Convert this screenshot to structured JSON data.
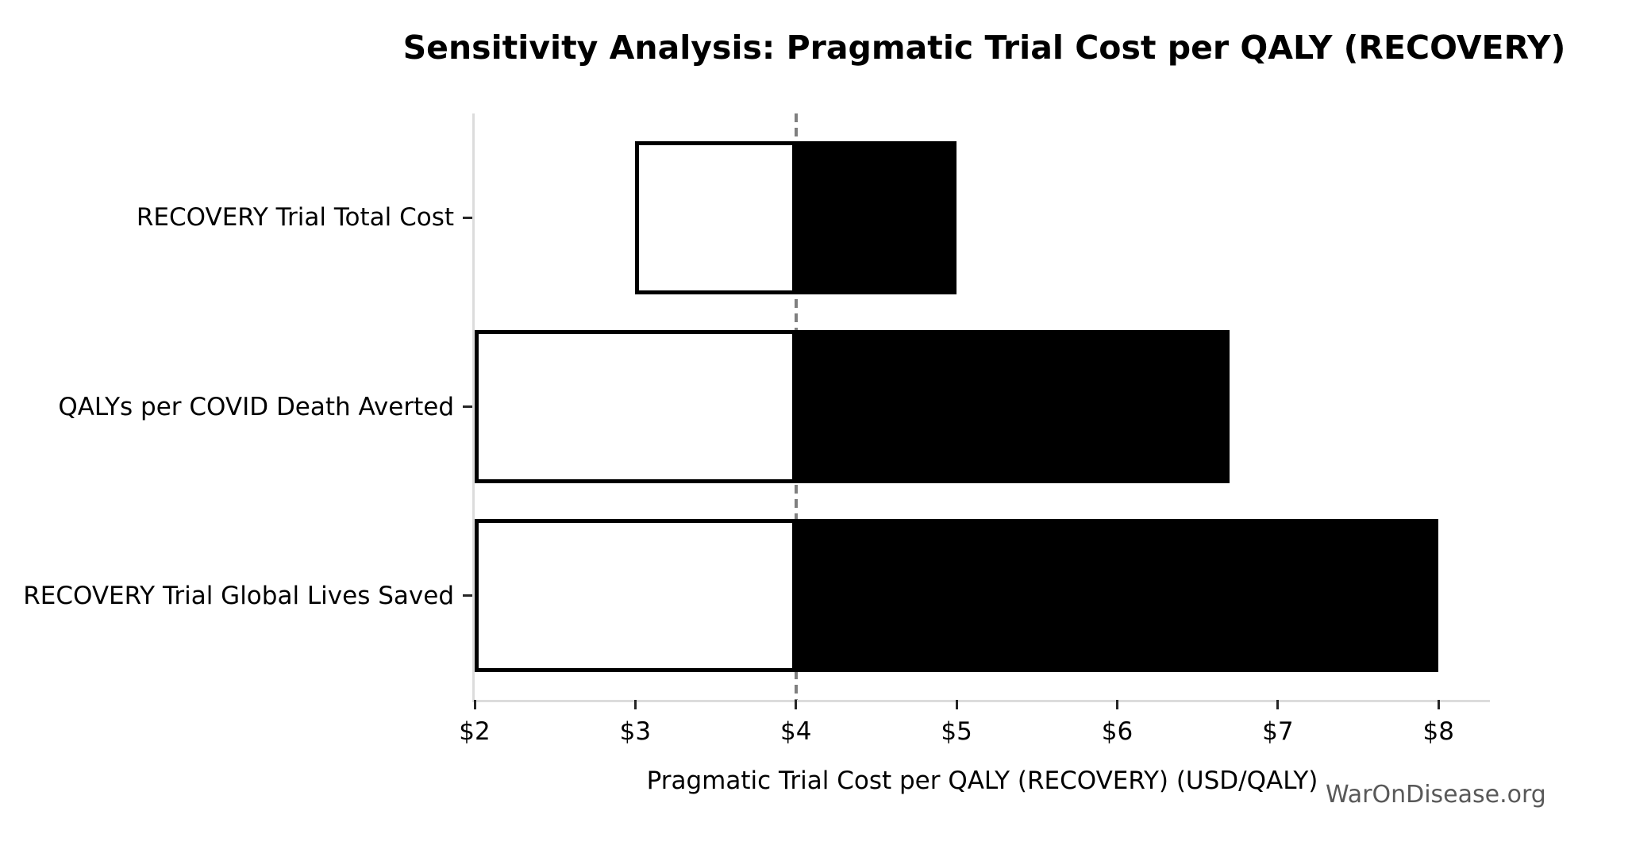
{
  "chart_data": {
    "type": "bar",
    "variant": "tornado-sensitivity",
    "orientation": "horizontal",
    "title": "Sensitivity Analysis: Pragmatic Trial Cost per QALY (RECOVERY)",
    "xlabel": "Pragmatic Trial Cost per QALY (RECOVERY) (USD/QALY)",
    "ylabel": "",
    "baseline_value": 4,
    "categories": [
      "RECOVERY Trial Total Cost",
      "QALYs per COVID Death Averted",
      "RECOVERY Trial Global Lives Saved"
    ],
    "bars": [
      {
        "label": "RECOVERY Trial Total Cost",
        "low": 3.0,
        "high": 5.0
      },
      {
        "label": "QALYs per COVID Death Averted",
        "low": 2.0,
        "high": 6.7
      },
      {
        "label": "RECOVERY Trial Global Lives Saved",
        "low": 2.0,
        "high": 8.0
      }
    ],
    "x_ticks": [
      {
        "value": 2,
        "label": "$2"
      },
      {
        "value": 3,
        "label": "$3"
      },
      {
        "value": 4,
        "label": "$4"
      },
      {
        "value": 5,
        "label": "$5"
      },
      {
        "value": 6,
        "label": "$6"
      },
      {
        "value": 7,
        "label": "$7"
      },
      {
        "value": 8,
        "label": "$8"
      }
    ],
    "xlim": [
      2,
      8.32
    ],
    "grid": false,
    "legend": null,
    "colors": {
      "low_segment_fill": "#ffffff",
      "high_segment_fill": "#000000",
      "bar_edge": "#000000",
      "baseline_line": "#7f7f7f",
      "spine": "#dcdcdc",
      "tick": "#262626",
      "text": "#000000"
    }
  },
  "watermark": {
    "text": "WarOnDisease.org",
    "color": "#595959"
  }
}
